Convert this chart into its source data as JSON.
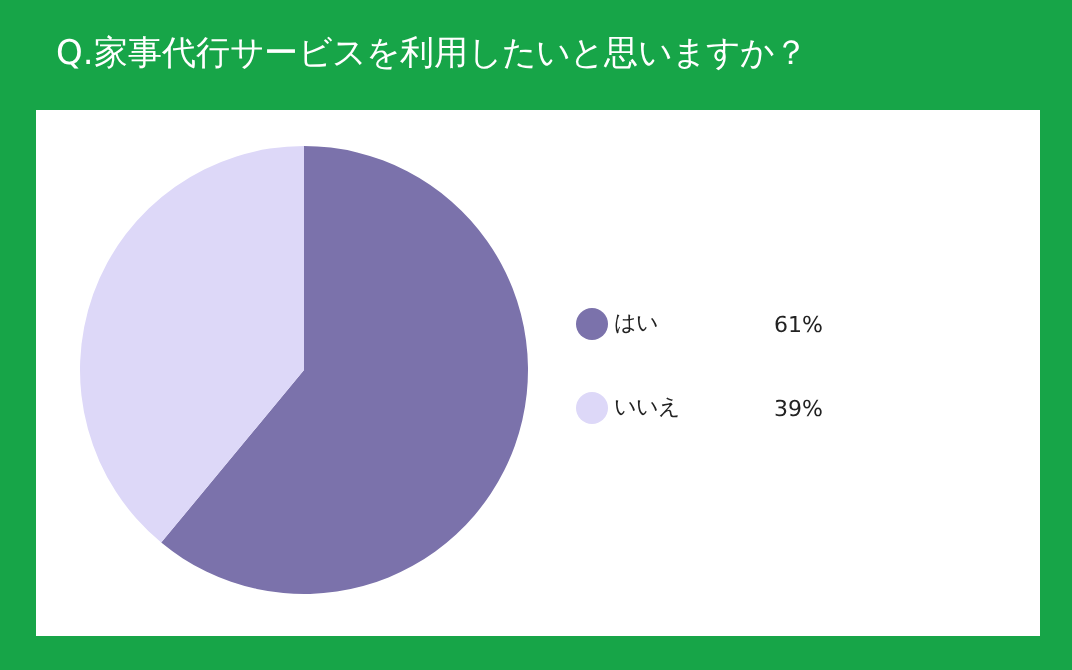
{
  "chart_data": {
    "type": "pie",
    "title": "Q.家事代行サービスを利用したいと思いますか？",
    "categories": [
      "はい",
      "いいえ"
    ],
    "values": [
      61,
      39
    ],
    "colors": [
      "#7b72ab",
      "#ddd8f8"
    ],
    "value_labels": [
      "61%",
      "39%"
    ],
    "legend": "right"
  }
}
